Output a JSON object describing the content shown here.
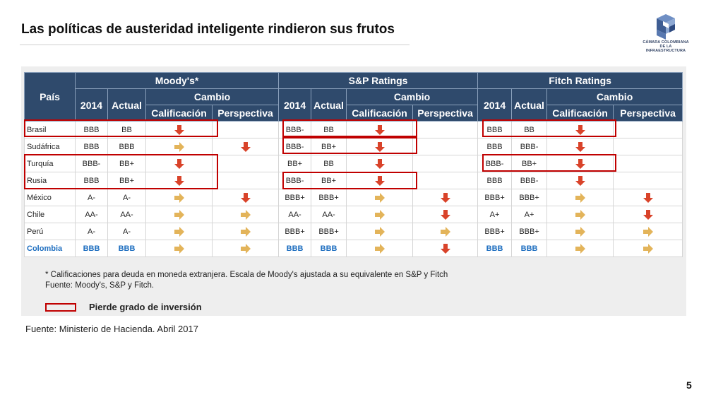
{
  "slide": {
    "title": "Las políticas de austeridad inteligente rindieron sus frutos",
    "source": "Fuente: Ministerio de Hacienda. Abril 2017",
    "page_number": "5",
    "logo": {
      "line1": "CÁMARA COLOMBIANA",
      "line2": "DE LA INFRAESTRUCTURA"
    }
  },
  "table": {
    "header_pais": "País",
    "agencies": [
      "Moody's*",
      "S&P Ratings",
      "Fitch Ratings"
    ],
    "col_2014": "2014",
    "col_actual": "Actual",
    "col_cambio": "Cambio",
    "col_calificacion": "Calificación",
    "col_perspectiva": "Perspectiva",
    "rows": [
      {
        "pais": "Brasil",
        "m2014": "BBB",
        "mact": "BB",
        "mcal": "down",
        "mper": "",
        "s2014": "BBB-",
        "sact": "BB",
        "scal": "down",
        "sper": "",
        "f2014": "BBB",
        "fact": "BB",
        "fcal": "down",
        "fper": ""
      },
      {
        "pais": "Sudáfrica",
        "m2014": "BBB",
        "mact": "BBB",
        "mcal": "right",
        "mper": "down",
        "s2014": "BBB-",
        "sact": "BB+",
        "scal": "down",
        "sper": "",
        "f2014": "BBB",
        "fact": "BBB-",
        "fcal": "down",
        "fper": ""
      },
      {
        "pais": "Turquía",
        "m2014": "BBB-",
        "mact": "BB+",
        "mcal": "down",
        "mper": "",
        "s2014": "BB+",
        "sact": "BB",
        "scal": "down",
        "sper": "",
        "f2014": "BBB-",
        "fact": "BB+",
        "fcal": "down",
        "fper": ""
      },
      {
        "pais": "Rusia",
        "m2014": "BBB",
        "mact": "BB+",
        "mcal": "down",
        "mper": "",
        "s2014": "BBB-",
        "sact": "BB+",
        "scal": "down",
        "sper": "",
        "f2014": "BBB",
        "fact": "BBB-",
        "fcal": "down",
        "fper": ""
      },
      {
        "pais": "México",
        "m2014": "A-",
        "mact": "A-",
        "mcal": "right",
        "mper": "down",
        "s2014": "BBB+",
        "sact": "BBB+",
        "scal": "right",
        "sper": "down",
        "f2014": "BBB+",
        "fact": "BBB+",
        "fcal": "right",
        "fper": "down"
      },
      {
        "pais": "Chile",
        "m2014": "AA-",
        "mact": "AA-",
        "mcal": "right",
        "mper": "right",
        "s2014": "AA-",
        "sact": "AA-",
        "scal": "right",
        "sper": "down",
        "f2014": "A+",
        "fact": "A+",
        "fcal": "right",
        "fper": "down"
      },
      {
        "pais": "Perú",
        "m2014": "A-",
        "mact": "A-",
        "mcal": "right",
        "mper": "right",
        "s2014": "BBB+",
        "sact": "BBB+",
        "scal": "right",
        "sper": "right",
        "f2014": "BBB+",
        "fact": "BBB+",
        "fcal": "right",
        "fper": "right"
      },
      {
        "pais": "Colombia",
        "m2014": "BBB",
        "mact": "BBB",
        "mcal": "right",
        "mper": "right",
        "s2014": "BBB",
        "sact": "BBB",
        "scal": "right",
        "sper": "down",
        "f2014": "BBB",
        "fact": "BBB",
        "fcal": "right",
        "fper": "right"
      }
    ]
  },
  "notes": {
    "line1": "* Calificaciones para deuda en moneda extranjera. Escala de Moody's ajustada a su equivalente en S&P y Fitch",
    "line2": "Fuente: Moody's, S&P y Fitch.",
    "legend": "Pierde grado de inversión"
  },
  "colors": {
    "header": "#2f4a6c",
    "highlight": "#c00000",
    "arrow_down": "#d9432a",
    "arrow_right": "#e3b45a",
    "colombia": "#1f6fc0"
  }
}
